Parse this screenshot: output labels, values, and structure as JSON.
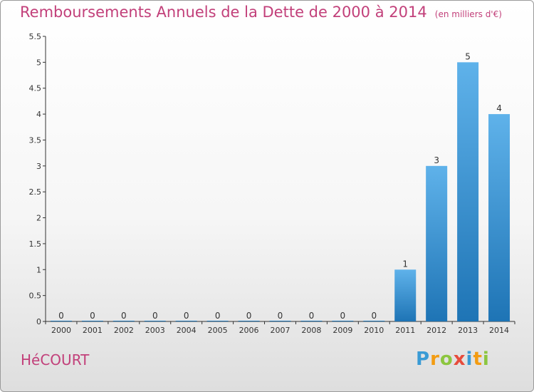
{
  "title": "Remboursements Annuels de la Dette de 2000 à 2014",
  "unit_note": "(en milliers d'€)",
  "commune": "HéCOURT",
  "logo": {
    "text": "Proxiti"
  },
  "colors": {
    "title": "#c2407a",
    "bar_top": "#5fb2ea",
    "bar_bottom": "#1e74b5",
    "axis": "#333333"
  },
  "chart_data": {
    "type": "bar",
    "title": "Remboursements Annuels de la Dette de 2000 à 2014",
    "xlabel": "",
    "ylabel": "",
    "categories": [
      "2000",
      "2001",
      "2002",
      "2003",
      "2004",
      "2005",
      "2006",
      "2007",
      "2008",
      "2009",
      "2010",
      "2011",
      "2012",
      "2013",
      "2014"
    ],
    "values": [
      0,
      0,
      0,
      0,
      0,
      0,
      0,
      0,
      0,
      0,
      0,
      1,
      3,
      5,
      4
    ],
    "data_labels": [
      "0",
      "0",
      "0",
      "0",
      "0",
      "0",
      "0",
      "0",
      "0",
      "0",
      "0",
      "1",
      "3",
      "5",
      "4"
    ],
    "ylim": [
      0,
      5.5
    ],
    "yticks": [
      0,
      0.5,
      1,
      1.5,
      2,
      2.5,
      3,
      3.5,
      4,
      4.5,
      5,
      5.5
    ],
    "ytick_labels": [
      "0",
      "0.5",
      "1",
      "1.5",
      "2",
      "2.5",
      "3",
      "3.5",
      "4",
      "4.5",
      "5",
      "5.5"
    ],
    "grid": false,
    "legend": "none"
  }
}
